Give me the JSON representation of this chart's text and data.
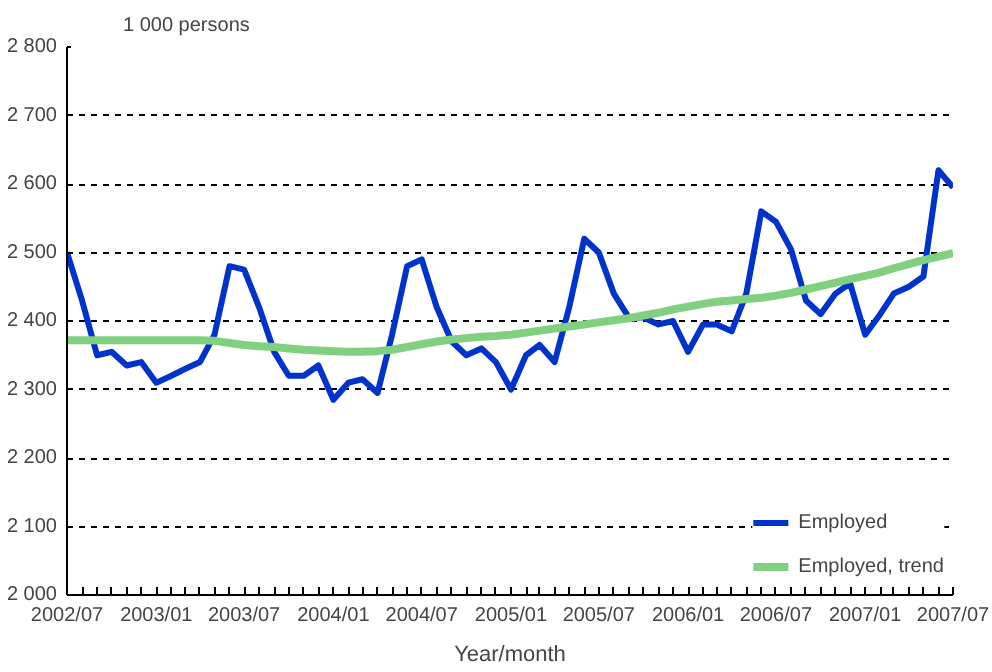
{
  "chart_data": {
    "type": "line",
    "ylabel": "1 000 persons",
    "xlabel": "Year/month",
    "x": [
      "2002-07",
      "2002-08",
      "2002-09",
      "2002-10",
      "2002-11",
      "2002-12",
      "2003-01",
      "2003-02",
      "2003-03",
      "2003-04",
      "2003-05",
      "2003-06",
      "2003-07",
      "2003-08",
      "2003-09",
      "2003-10",
      "2003-11",
      "2003-12",
      "2004-01",
      "2004-02",
      "2004-03",
      "2004-04",
      "2004-05",
      "2004-06",
      "2004-07",
      "2004-08",
      "2004-09",
      "2004-10",
      "2004-11",
      "2004-12",
      "2005-01",
      "2005-02",
      "2005-03",
      "2005-04",
      "2005-05",
      "2005-06",
      "2005-07",
      "2005-08",
      "2005-09",
      "2005-10",
      "2005-11",
      "2005-12",
      "2006-01",
      "2006-02",
      "2006-03",
      "2006-04",
      "2006-05",
      "2006-06",
      "2006-07",
      "2006-08",
      "2006-09",
      "2006-10",
      "2006-11",
      "2006-12",
      "2007-01",
      "2007-02",
      "2007-03",
      "2007-04",
      "2007-05",
      "2007-06",
      "2007-07"
    ],
    "series": [
      {
        "name": "Employed",
        "color": "#0033cc",
        "values": [
          2500,
          2430,
          2350,
          2355,
          2335,
          2340,
          2310,
          2320,
          2330,
          2340,
          2380,
          2480,
          2475,
          2420,
          2355,
          2320,
          2320,
          2335,
          2285,
          2310,
          2315,
          2295,
          2380,
          2480,
          2490,
          2420,
          2370,
          2350,
          2360,
          2340,
          2300,
          2350,
          2365,
          2340,
          2420,
          2520,
          2500,
          2440,
          2405,
          2405,
          2395,
          2400,
          2355,
          2395,
          2395,
          2385,
          2440,
          2560,
          2545,
          2505,
          2430,
          2410,
          2440,
          2455,
          2380,
          2410,
          2440,
          2450,
          2465,
          2620,
          2595
        ]
      },
      {
        "name": "Employed, trend",
        "color": "#80d080",
        "values": [
          2372,
          2372,
          2372,
          2372,
          2372,
          2372,
          2372,
          2372,
          2372,
          2372,
          2371,
          2368,
          2365,
          2363,
          2362,
          2360,
          2358,
          2357,
          2356,
          2355,
          2355,
          2356,
          2358,
          2362,
          2366,
          2370,
          2373,
          2375,
          2377,
          2378,
          2380,
          2383,
          2386,
          2389,
          2392,
          2395,
          2398,
          2401,
          2404,
          2408,
          2412,
          2417,
          2421,
          2425,
          2428,
          2430,
          2432,
          2434,
          2437,
          2441,
          2446,
          2451,
          2456,
          2461,
          2466,
          2471,
          2477,
          2483,
          2489,
          2494,
          2499
        ]
      }
    ],
    "xlim": [
      "2002-07",
      "2007-07"
    ],
    "xticks": [
      {
        "value": "2002-07",
        "label": "2002/07"
      },
      {
        "value": "2003-01",
        "label": "2003/01"
      },
      {
        "value": "2003-07",
        "label": "2003/07"
      },
      {
        "value": "2004-01",
        "label": "2004/01"
      },
      {
        "value": "2004-07",
        "label": "2004/07"
      },
      {
        "value": "2005-01",
        "label": "2005/01"
      },
      {
        "value": "2005-07",
        "label": "2005/07"
      },
      {
        "value": "2006-01",
        "label": "2006/01"
      },
      {
        "value": "2006-07",
        "label": "2006/07"
      },
      {
        "value": "2007-01",
        "label": "2007/01"
      },
      {
        "value": "2007-07",
        "label": "2007/07"
      }
    ],
    "ylim": [
      2000,
      2800
    ],
    "yticks": [
      {
        "value": 2000,
        "label": "2 000"
      },
      {
        "value": 2100,
        "label": "2 100"
      },
      {
        "value": 2200,
        "label": "2 200"
      },
      {
        "value": 2300,
        "label": "2 300"
      },
      {
        "value": 2400,
        "label": "2 400"
      },
      {
        "value": 2500,
        "label": "2 500"
      },
      {
        "value": 2600,
        "label": "2 600"
      },
      {
        "value": 2700,
        "label": "2 700"
      },
      {
        "value": 2800,
        "label": "2 800"
      }
    ],
    "grid": "y",
    "legend": "bottom right",
    "marker": "none",
    "line_style": "solid"
  }
}
